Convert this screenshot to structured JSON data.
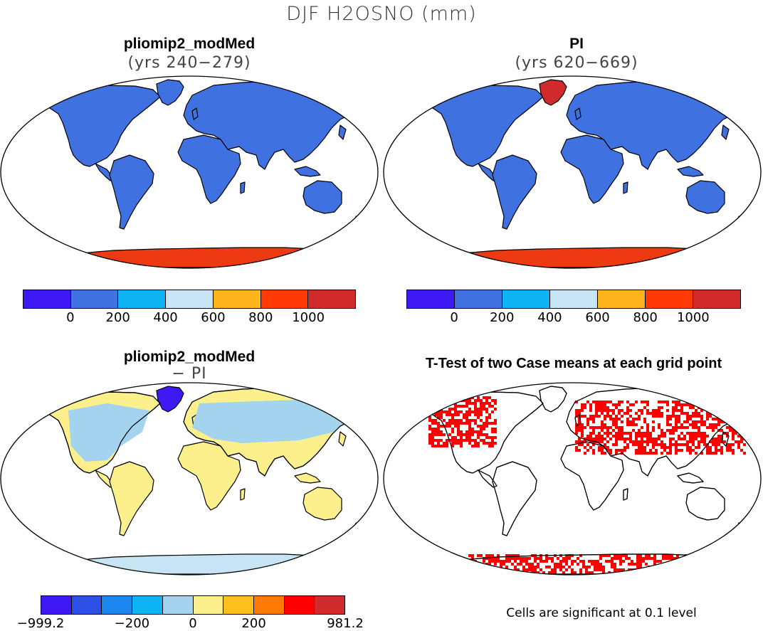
{
  "title": "DJF H2OSNO (mm)",
  "panels": [
    {
      "title": "pliomip2_modMed",
      "subtitle": "(yrs 240−279)",
      "land_color": "#3f72e0",
      "greenland_color": "#3f72e0",
      "antarctica_color": "#ee3a12",
      "colorbar": {
        "colors": [
          "#3f19f3",
          "#3f72e0",
          "#0fb4f4",
          "#c6e4f3",
          "#fdb41d",
          "#ff3a05",
          "#d12a2c"
        ],
        "labels": [
          "0",
          "200",
          "400",
          "600",
          "800",
          "1000"
        ]
      }
    },
    {
      "title": "PI",
      "subtitle": "(yrs 620−669)",
      "land_color": "#3f72e0",
      "greenland_color": "#d12a2c",
      "antarctica_color": "#ee3a12",
      "colorbar": {
        "colors": [
          "#3f19f3",
          "#3f72e0",
          "#0fb4f4",
          "#c6e4f3",
          "#fdb41d",
          "#ff3a05",
          "#d12a2c"
        ],
        "labels": [
          "0",
          "200",
          "400",
          "600",
          "800",
          "1000"
        ]
      }
    },
    {
      "title": "pliomip2_modMed",
      "subtitle": "− PI",
      "land_color": "#fbf08c",
      "greenland_color": "#3f19f3",
      "antarctica_color": "#c6e4f3",
      "colorbar": {
        "colors": [
          "#3f19f3",
          "#2c4fe6",
          "#1c86f0",
          "#0fb4f4",
          "#a3d3ee",
          "#fbf08c",
          "#fdbf1d",
          "#ff7a04",
          "#ff0000",
          "#d12a2c"
        ],
        "labels": [
          "−999.2",
          "−200",
          "0",
          "200",
          "981.2"
        ]
      }
    },
    {
      "title": "T-Test of two Case means at each grid point",
      "subtitle": "",
      "land_color": "#ffffff",
      "greenland_color": "#ffffff",
      "antarctica_color": "#ffffff",
      "sig_color": "#ff0000",
      "footnote": "Cells are significant at 0.1 level"
    }
  ]
}
